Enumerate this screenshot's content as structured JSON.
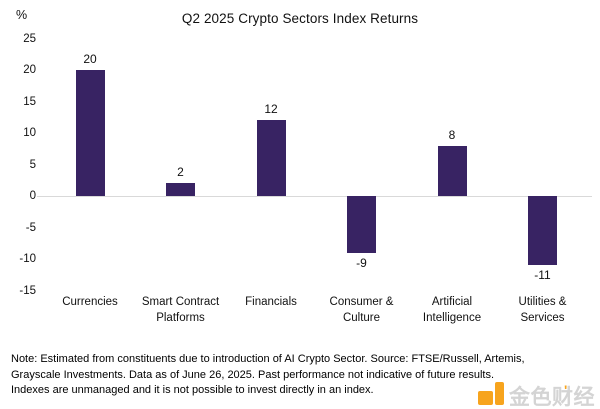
{
  "title": "Q2 2025 Crypto Sectors Index Returns",
  "chart_data": {
    "type": "bar",
    "title": "Q2 2025 Crypto Sectors Index Returns",
    "unit_label": "%",
    "categories": [
      "Currencies",
      "Smart Contract Platforms",
      "Financials",
      "Consumer & Culture",
      "Artificial Intelligence",
      "Utilities & Services"
    ],
    "values": [
      20,
      2,
      12,
      -9,
      8,
      -11
    ],
    "value_labels": [
      "20",
      "2",
      "12",
      "-9",
      "8",
      "-11"
    ],
    "y_ticks": [
      25,
      20,
      15,
      10,
      5,
      0,
      -5,
      -10,
      -15
    ],
    "ylim": [
      -15,
      25
    ],
    "xlabel": "",
    "ylabel": "%",
    "grid": false,
    "legend_position": "none",
    "bar_color": "#382363",
    "axis_line_color": "#d9d9d9"
  },
  "note": {
    "lines": [
      "Note: Estimated from constituents due to introduction of AI Crypto Sector. Source: FTSE/Russell, Artemis,",
      "Grayscale Investments. Data as of June 26, 2025. Past performance not indicative of future results.",
      "Indexes are unmanaged and it is not possible to invest directly in an index."
    ]
  },
  "watermark": {
    "text": "金色财经",
    "accent_mark": "'",
    "logo_color": "#F7A41D",
    "accent_color": "#F7A41D"
  }
}
